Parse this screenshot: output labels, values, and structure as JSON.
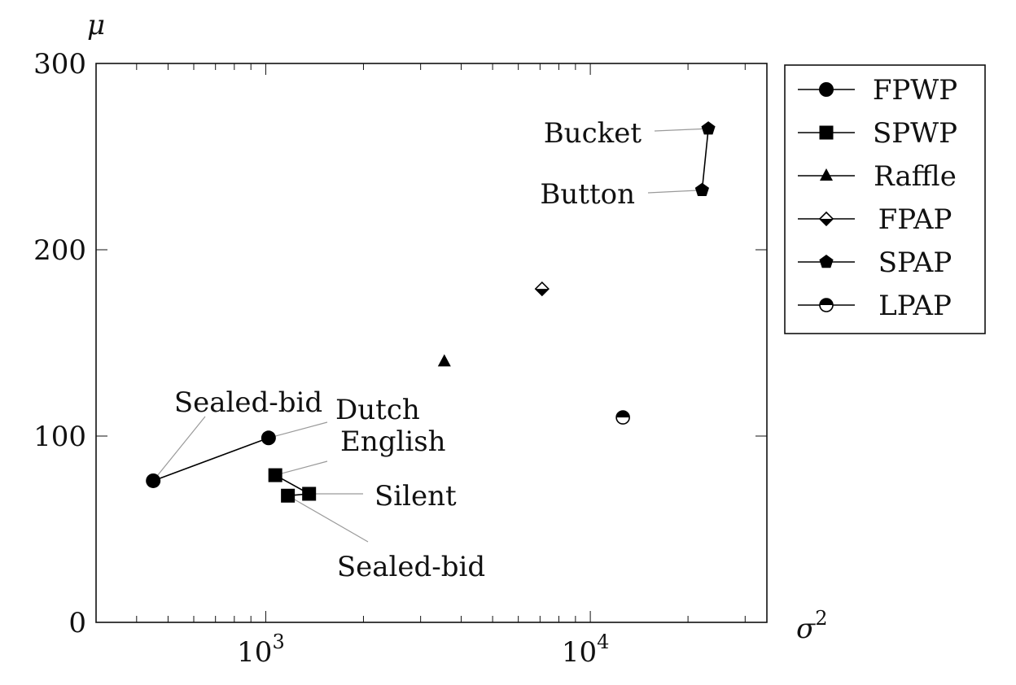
{
  "chart_data": {
    "type": "scatter",
    "xlabel": "σ",
    "xlabel_sup": "2",
    "ylabel": "μ",
    "xscale": "log",
    "xlim": [
      300,
      35000
    ],
    "ylim": [
      0,
      300
    ],
    "x_ticks": [
      {
        "value": 1000,
        "base": "10",
        "exp": "3"
      },
      {
        "value": 10000,
        "base": "10",
        "exp": "4"
      }
    ],
    "y_ticks": [
      {
        "value": 0,
        "label": "0"
      },
      {
        "value": 100,
        "label": "100"
      },
      {
        "value": 200,
        "label": "200"
      },
      {
        "value": 300,
        "label": "300"
      }
    ],
    "legend_position": "outside-right",
    "series": [
      {
        "name": "FPWP",
        "marker": "circle",
        "connected": true,
        "points": [
          {
            "x": 450,
            "y": 76
          },
          {
            "x": 1020,
            "y": 99
          }
        ]
      },
      {
        "name": "SPWP",
        "marker": "square",
        "connected": true,
        "points": [
          {
            "x": 1070,
            "y": 79
          },
          {
            "x": 1360,
            "y": 69
          },
          {
            "x": 1170,
            "y": 68
          }
        ]
      },
      {
        "name": "Raffle",
        "marker": "triangle",
        "connected": false,
        "points": [
          {
            "x": 3550,
            "y": 140
          }
        ]
      },
      {
        "name": "FPAP",
        "marker": "half-diamond",
        "connected": false,
        "points": [
          {
            "x": 7100,
            "y": 179
          }
        ]
      },
      {
        "name": "SPAP",
        "marker": "pentagon",
        "connected": true,
        "points": [
          {
            "x": 22100,
            "y": 232
          },
          {
            "x": 23100,
            "y": 265
          }
        ]
      },
      {
        "name": "LPAP",
        "marker": "half-circle",
        "connected": false,
        "points": [
          {
            "x": 12600,
            "y": 110
          }
        ]
      }
    ],
    "annotations": [
      {
        "text": "Sealed-bid",
        "x": 450,
        "y": 76
      },
      {
        "text": "Dutch",
        "x": 1020,
        "y": 99
      },
      {
        "text": "English",
        "x": 1070,
        "y": 79
      },
      {
        "text": "Silent",
        "x": 1360,
        "y": 69
      },
      {
        "text": "Sealed-bid",
        "x": 1170,
        "y": 68
      },
      {
        "text": "Bucket",
        "x": 23100,
        "y": 265
      },
      {
        "text": "Button",
        "x": 22100,
        "y": 232
      }
    ]
  }
}
